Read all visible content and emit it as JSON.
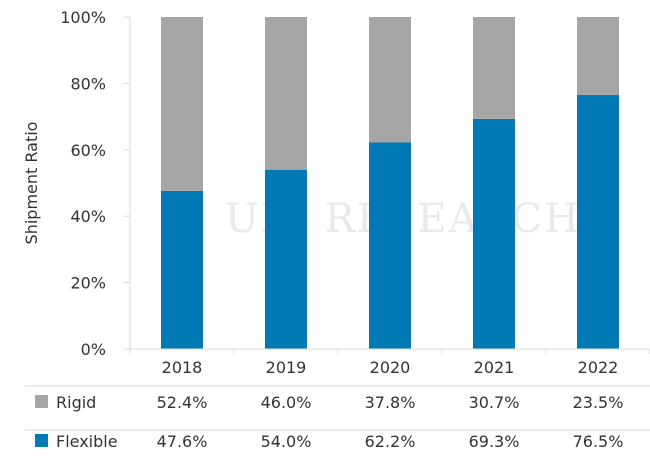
{
  "chart_data": {
    "type": "bar",
    "stacked": true,
    "categories": [
      "2018",
      "2019",
      "2020",
      "2021",
      "2022"
    ],
    "series": [
      {
        "name": "Flexible",
        "values": [
          47.6,
          54.0,
          62.2,
          69.3,
          76.5
        ],
        "color": "#0079b5"
      },
      {
        "name": "Rigid",
        "values": [
          52.4,
          46.0,
          37.8,
          30.7,
          23.5
        ],
        "color": "#a6a6a6"
      }
    ],
    "ylabel": "Shipment Ratio",
    "yticks": [
      "0%",
      "20%",
      "40%",
      "60%",
      "80%",
      "100%"
    ],
    "ylim": [
      0,
      100
    ],
    "grid": false,
    "data_table": {
      "rows": [
        {
          "label": "Rigid",
          "values": [
            "52.4%",
            "46.0%",
            "37.8%",
            "30.7%",
            "23.5%"
          ]
        },
        {
          "label": "Flexible",
          "values": [
            "47.6%",
            "54.0%",
            "62.2%",
            "69.3%",
            "76.5%"
          ]
        }
      ]
    },
    "watermark": "UBI RESEARCH"
  }
}
